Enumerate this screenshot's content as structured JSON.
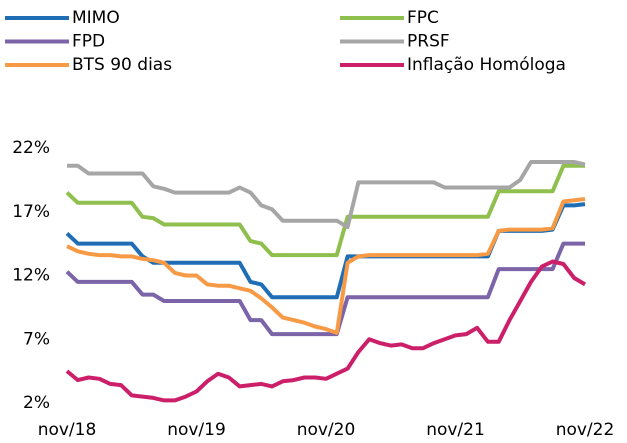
{
  "chart_data": {
    "type": "line",
    "categories": [
      "nov/18",
      null,
      null,
      null,
      null,
      null,
      null,
      null,
      null,
      null,
      null,
      null,
      "nov/19",
      null,
      null,
      null,
      null,
      null,
      null,
      null,
      null,
      null,
      null,
      null,
      "nov/20",
      null,
      null,
      null,
      null,
      null,
      null,
      null,
      null,
      null,
      null,
      null,
      "nov/21",
      null,
      null,
      null,
      null,
      null,
      null,
      null,
      null,
      null,
      null,
      null,
      "nov/22"
    ],
    "series": [
      {
        "name": "MIMO",
        "color": "#1f6eb5",
        "values": [
          15.3,
          14.5,
          14.5,
          14.5,
          14.5,
          14.5,
          14.5,
          13.5,
          13.0,
          13.0,
          13.0,
          13.0,
          13.0,
          13.0,
          13.0,
          13.0,
          13.0,
          11.5,
          11.3,
          10.3,
          10.3,
          10.3,
          10.3,
          10.3,
          10.3,
          10.3,
          13.5,
          13.5,
          13.5,
          13.5,
          13.5,
          13.5,
          13.5,
          13.5,
          13.5,
          13.5,
          13.5,
          13.5,
          13.5,
          13.5,
          15.5,
          15.5,
          15.5,
          15.5,
          15.5,
          15.6,
          17.5,
          17.5,
          17.6
        ]
      },
      {
        "name": "FPC",
        "color": "#8fbf4d",
        "values": [
          18.5,
          17.7,
          17.7,
          17.7,
          17.7,
          17.7,
          17.7,
          16.6,
          16.5,
          16.0,
          16.0,
          16.0,
          16.0,
          16.0,
          16.0,
          16.0,
          16.0,
          14.7,
          14.5,
          13.6,
          13.6,
          13.6,
          13.6,
          13.6,
          13.6,
          13.6,
          16.6,
          16.6,
          16.6,
          16.6,
          16.6,
          16.6,
          16.6,
          16.6,
          16.6,
          16.6,
          16.6,
          16.6,
          16.6,
          16.6,
          18.6,
          18.6,
          18.6,
          18.6,
          18.6,
          18.6,
          20.6,
          20.6,
          20.6
        ]
      },
      {
        "name": "FPD",
        "color": "#7b64a8",
        "values": [
          12.3,
          11.5,
          11.5,
          11.5,
          11.5,
          11.5,
          11.5,
          10.5,
          10.5,
          10.0,
          10.0,
          10.0,
          10.0,
          10.0,
          10.0,
          10.0,
          10.0,
          8.5,
          8.5,
          7.4,
          7.4,
          7.4,
          7.4,
          7.4,
          7.4,
          7.4,
          10.3,
          10.3,
          10.3,
          10.3,
          10.3,
          10.3,
          10.3,
          10.3,
          10.3,
          10.3,
          10.3,
          10.3,
          10.3,
          10.3,
          12.5,
          12.5,
          12.5,
          12.5,
          12.5,
          12.5,
          14.5,
          14.5,
          14.5
        ]
      },
      {
        "name": "PRSF",
        "color": "#a6a6a6",
        "values": [
          20.6,
          20.6,
          20.0,
          20.0,
          20.0,
          20.0,
          20.0,
          20.0,
          19.0,
          18.8,
          18.5,
          18.5,
          18.5,
          18.5,
          18.5,
          18.5,
          18.9,
          18.5,
          17.5,
          17.2,
          16.3,
          16.3,
          16.3,
          16.3,
          16.3,
          16.3,
          15.8,
          19.3,
          19.3,
          19.3,
          19.3,
          19.3,
          19.3,
          19.3,
          19.3,
          18.9,
          18.9,
          18.9,
          18.9,
          18.9,
          18.9,
          18.9,
          19.5,
          20.9,
          20.9,
          20.9,
          20.9,
          20.9,
          20.7
        ]
      },
      {
        "name": "BTS 90 dias",
        "color": "#f79a46",
        "values": [
          14.3,
          13.9,
          13.7,
          13.6,
          13.6,
          13.5,
          13.5,
          13.3,
          13.2,
          13.0,
          12.2,
          12.0,
          12.0,
          11.3,
          11.2,
          11.2,
          11.0,
          10.8,
          10.2,
          9.5,
          8.7,
          8.5,
          8.3,
          8.0,
          7.8,
          7.5,
          13.0,
          13.5,
          13.6,
          13.6,
          13.6,
          13.6,
          13.6,
          13.6,
          13.6,
          13.6,
          13.6,
          13.6,
          13.6,
          13.7,
          15.5,
          15.6,
          15.6,
          15.6,
          15.6,
          15.7,
          17.8,
          17.9,
          18.0
        ]
      },
      {
        "name": "Inflação Homóloga",
        "color": "#cc1f6a",
        "values": [
          4.5,
          3.8,
          4.0,
          3.9,
          3.5,
          3.4,
          2.6,
          2.5,
          2.4,
          2.2,
          2.2,
          2.5,
          2.9,
          3.7,
          4.3,
          4.0,
          3.3,
          3.4,
          3.5,
          3.3,
          3.7,
          3.8,
          4.0,
          4.0,
          3.9,
          4.3,
          4.7,
          6.0,
          7.0,
          6.7,
          6.5,
          6.6,
          6.3,
          6.3,
          6.7,
          7.0,
          7.3,
          7.4,
          7.9,
          6.8,
          6.8,
          8.5,
          10.0,
          11.5,
          12.7,
          13.1,
          12.9,
          11.8,
          11.3
        ]
      }
    ],
    "ylim": [
      2,
      22
    ],
    "yticks": [
      {
        "value": 2,
        "label": "2%"
      },
      {
        "value": 7,
        "label": "7%"
      },
      {
        "value": 12,
        "label": "12%"
      },
      {
        "value": 17,
        "label": "17%"
      },
      {
        "value": 22,
        "label": "22%"
      }
    ]
  }
}
